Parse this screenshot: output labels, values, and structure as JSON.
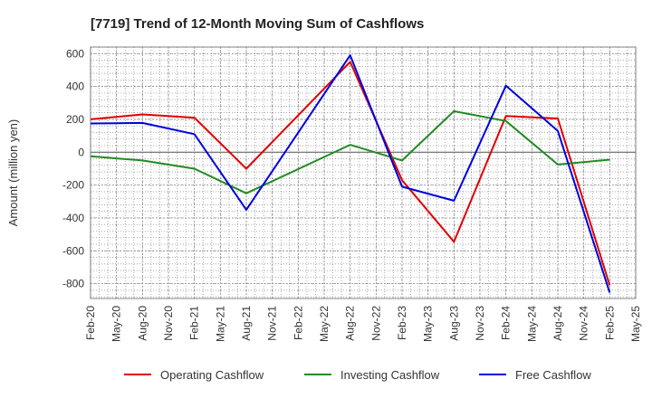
{
  "chart_data": {
    "type": "line",
    "title": "[7719]  Trend of 12-Month Moving Sum of Cashflows",
    "xlabel": "",
    "ylabel": "Amount (million yen)",
    "ylim": [
      -890,
      640
    ],
    "yticks": [
      600,
      400,
      200,
      0,
      -200,
      -400,
      -600,
      -800
    ],
    "ytick_labels": [
      "600",
      "400",
      "200",
      "0",
      "-200",
      "-400",
      "-600",
      "-800"
    ],
    "xticks": [
      "Feb-20",
      "May-20",
      "Aug-20",
      "Nov-20",
      "Feb-21",
      "May-21",
      "Aug-21",
      "Nov-21",
      "Feb-22",
      "May-22",
      "Aug-22",
      "Nov-22",
      "Feb-23",
      "May-23",
      "Aug-23",
      "Nov-23",
      "Feb-24",
      "May-24",
      "Aug-24",
      "Nov-24",
      "Feb-25",
      "May-25"
    ],
    "grid": true,
    "legend_position": "bottom",
    "series": [
      {
        "name": "Operating Cashflow",
        "color": "#e00000",
        "x": [
          "Feb-20",
          "Aug-20",
          "Feb-21",
          "Aug-21",
          "Aug-22",
          "Feb-23",
          "Aug-23",
          "Feb-24",
          "Aug-24",
          "Feb-25"
        ],
        "values": [
          200,
          230,
          210,
          -100,
          550,
          -170,
          -545,
          220,
          205,
          -810
        ]
      },
      {
        "name": "Investing Cashflow",
        "color": "#228b22",
        "x": [
          "Feb-20",
          "Aug-20",
          "Feb-21",
          "Aug-21",
          "Aug-22",
          "Feb-23",
          "Aug-23",
          "Feb-24",
          "Aug-24",
          "Feb-25"
        ],
        "values": [
          -25,
          -50,
          -100,
          -250,
          45,
          -50,
          250,
          190,
          -75,
          -45
        ]
      },
      {
        "name": "Free Cashflow",
        "color": "#0000dd",
        "x": [
          "Feb-20",
          "Aug-20",
          "Feb-21",
          "Aug-21",
          "Aug-22",
          "Feb-23",
          "Aug-23",
          "Feb-24",
          "Aug-24",
          "Feb-25"
        ],
        "values": [
          175,
          178,
          110,
          -350,
          590,
          -210,
          -295,
          405,
          130,
          -855
        ]
      }
    ]
  }
}
